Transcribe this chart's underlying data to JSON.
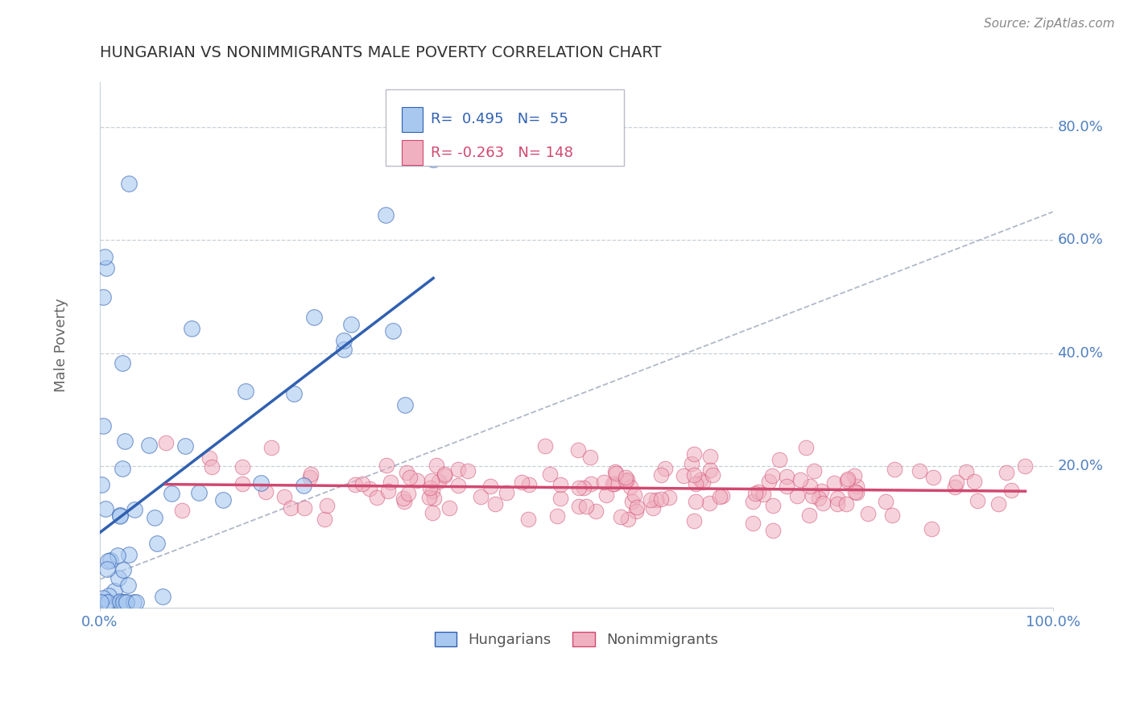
{
  "title": "HUNGARIAN VS NONIMMIGRANTS MALE POVERTY CORRELATION CHART",
  "source": "Source: ZipAtlas.com",
  "ylabel": "Male Poverty",
  "xlim": [
    0.0,
    1.0
  ],
  "ylim": [
    -0.05,
    0.88
  ],
  "ytick_vals": [
    0.2,
    0.4,
    0.6,
    0.8
  ],
  "ytick_lbls": [
    "20.0%",
    "40.0%",
    "60.0%",
    "80.0%"
  ],
  "legend_r1": "R=  0.495",
  "legend_n1": "N=  55",
  "legend_r2": "R= -0.263",
  "legend_n2": "N= 148",
  "label1": "Hungarians",
  "label2": "Nonimmigrants",
  "color_blue": "#a8c8f0",
  "color_pink": "#f0b0c0",
  "color_blue_line": "#3060b0",
  "color_pink_line": "#d04870",
  "color_dashed": "#b0b8c8",
  "title_color": "#333333",
  "source_color": "#888888",
  "axis_label_color": "#5080c0",
  "grid_color": "#c8d0d8",
  "seed": 12
}
